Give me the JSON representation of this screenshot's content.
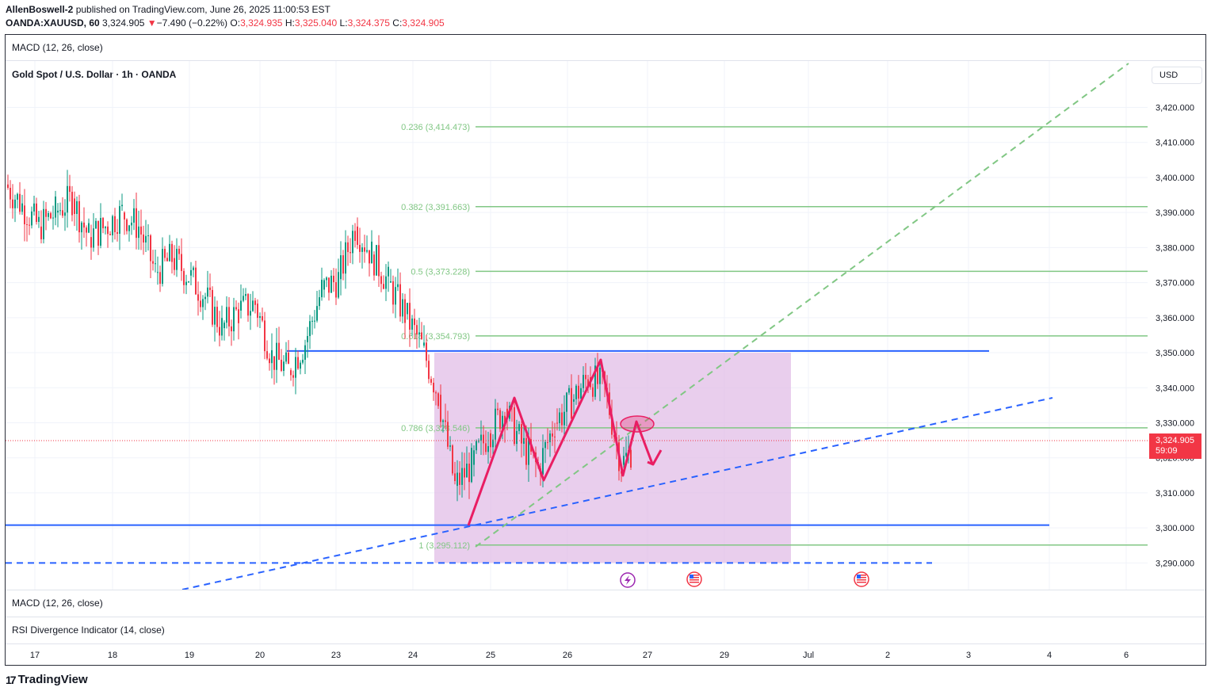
{
  "header": {
    "author": "AllenBoswell-2",
    "published_text": " published on TradingView.com, June 26, 2025 11:00:53 EST",
    "symbol": "OANDA:XAUUSD, 60",
    "last": "3,324.905",
    "change_arrow": "▼",
    "change": "−7.490 (−0.22%)",
    "open_label": "O:",
    "open": "3,324.935",
    "high_label": "H:",
    "high": "3,325.040",
    "low_label": "L:",
    "low": "3,324.375",
    "close_label": "C:",
    "close": "3,324.905"
  },
  "panes": {
    "macd_top": "MACD (12, 26, close)",
    "chart_title": "Gold Spot / U.S. Dollar · 1h · OANDA",
    "macd_bottom": "MACD (12, 26, close)",
    "rsi": "RSI Divergence Indicator (14, close)"
  },
  "currency_button": "USD",
  "price_badge": {
    "price": "3,324.905",
    "countdown": "59:09"
  },
  "footer": {
    "brand": "TradingView"
  },
  "colors": {
    "up": "#089981",
    "down": "#f23645",
    "fib": "#81c784",
    "trend": "#2962ff",
    "zone": "#e1bee7",
    "drawing": "#e91e63"
  },
  "chart_data": {
    "type": "candlestick",
    "title": "Gold Spot / U.S. Dollar · 1h · OANDA",
    "y_axis": {
      "range": [
        3286,
        3436
      ],
      "ticks": [
        "3,290.000",
        "3,300.000",
        "3,310.000",
        "3,320.000",
        "3,330.000",
        "3,340.000",
        "3,350.000",
        "3,360.000",
        "3,370.000",
        "3,380.000",
        "3,390.000",
        "3,400.000",
        "3,410.000",
        "3,420.000"
      ]
    },
    "x_axis": {
      "ticks": [
        "17",
        "18",
        "19",
        "20",
        "23",
        "24",
        "25",
        "26",
        "27",
        "29",
        "Jul",
        "2",
        "3",
        "4",
        "6"
      ]
    },
    "current_price": 3324.905,
    "fib_levels": [
      {
        "label": "0.236 (3,414.473)",
        "value": 3414.473
      },
      {
        "label": "0.382 (3,391.663)",
        "value": 3391.663
      },
      {
        "label": "0.5 (3,373.228)",
        "value": 3373.228
      },
      {
        "label": "0.618 (3,354.793)",
        "value": 3354.793
      },
      {
        "label": "0.786 (3,328.546)",
        "value": 3328.546
      },
      {
        "label": "1 (3,295.112)",
        "value": 3295.112
      }
    ],
    "horizontal_lines": [
      {
        "name": "resistance",
        "value": 3350.5
      },
      {
        "name": "support",
        "value": 3300.8
      },
      {
        "name": "lower-dashed",
        "value": 3290.0
      }
    ],
    "zone": {
      "top": 3350,
      "bottom": 3290
    },
    "candles_summary": [
      [
        3411,
        3418,
        3394,
        3398
      ],
      [
        3398,
        3405,
        3388,
        3392
      ],
      [
        3392,
        3400,
        3384,
        3386
      ],
      [
        3386,
        3396,
        3382,
        3390
      ],
      [
        3390,
        3398,
        3385,
        3394
      ],
      [
        3394,
        3399,
        3379,
        3383
      ],
      [
        3383,
        3389,
        3375,
        3386
      ],
      [
        3386,
        3394,
        3380,
        3390
      ],
      [
        3390,
        3397,
        3384,
        3386
      ],
      [
        3386,
        3391,
        3368,
        3373
      ],
      [
        3373,
        3380,
        3365,
        3377
      ],
      [
        3377,
        3384,
        3370,
        3372
      ],
      [
        3372,
        3378,
        3362,
        3366
      ],
      [
        3366,
        3372,
        3350,
        3357
      ],
      [
        3357,
        3366,
        3351,
        3362
      ],
      [
        3362,
        3370,
        3355,
        3364
      ],
      [
        3364,
        3369,
        3344,
        3349
      ],
      [
        3349,
        3356,
        3340,
        3345
      ],
      [
        3345,
        3356,
        3341,
        3353
      ],
      [
        3353,
        3371,
        3349,
        3368
      ],
      [
        3368,
        3375,
        3360,
        3371
      ],
      [
        3371,
        3390,
        3366,
        3386
      ],
      [
        3386,
        3393,
        3372,
        3378
      ],
      [
        3378,
        3384,
        3366,
        3370
      ],
      [
        3370,
        3378,
        3357,
        3361
      ],
      [
        3361,
        3364,
        3348,
        3352
      ],
      [
        3352,
        3356,
        3330,
        3338
      ],
      [
        3338,
        3345,
        3300,
        3312
      ],
      [
        3312,
        3322,
        3296,
        3318
      ],
      [
        3318,
        3330,
        3314,
        3327
      ],
      [
        3327,
        3338,
        3322,
        3334
      ],
      [
        3334,
        3337,
        3320,
        3324
      ],
      [
        3324,
        3328,
        3313,
        3317
      ],
      [
        3317,
        3332,
        3314,
        3330
      ],
      [
        3330,
        3339,
        3326,
        3336
      ],
      [
        3336,
        3346,
        3332,
        3343
      ],
      [
        3343,
        3350,
        3336,
        3340
      ],
      [
        3340,
        3344,
        3310,
        3318
      ],
      [
        3318,
        3326,
        3312,
        3324.9
      ]
    ],
    "annotations": [
      {
        "type": "zigzag",
        "description": "drawn price path"
      },
      {
        "type": "ellipse",
        "description": "marked area"
      },
      {
        "type": "arrow",
        "description": "projected move down"
      }
    ],
    "grid": true
  }
}
